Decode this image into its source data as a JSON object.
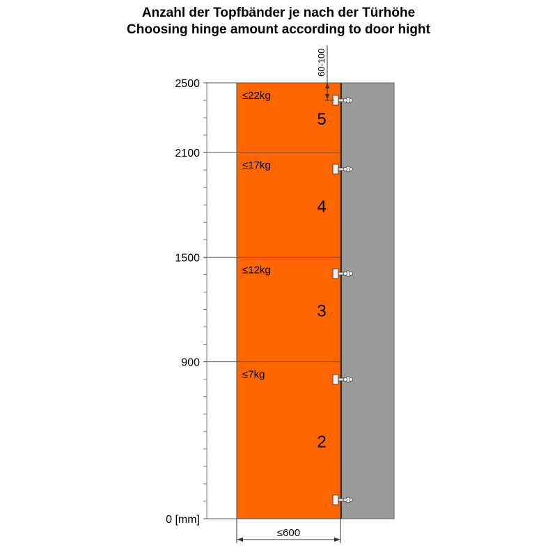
{
  "title_de": "Anzahl der Topfbänder je nach der Türhöhe",
  "title_en": "Choosing hinge amount according to door hight",
  "axis": {
    "max": 2500,
    "labels": [
      {
        "value": 2500,
        "text": "2500"
      },
      {
        "value": 2100,
        "text": "2100"
      },
      {
        "value": 1500,
        "text": "1500"
      },
      {
        "value": 900,
        "text": "900"
      },
      {
        "value": 0,
        "text": "0 [mm]"
      }
    ]
  },
  "zones": [
    {
      "from": 0,
      "to": 900,
      "weight": "≤7kg",
      "hinges": "2"
    },
    {
      "from": 900,
      "to": 1500,
      "weight": "≤12kg",
      "hinges": "3"
    },
    {
      "from": 1500,
      "to": 2100,
      "weight": "≤17kg",
      "hinges": "4"
    },
    {
      "from": 2100,
      "to": 2500,
      "weight": "≤22kg",
      "hinges": "5"
    }
  ],
  "dimensions": {
    "width": "≤600",
    "top_offset": "60-100"
  },
  "colors": {
    "door": "#ff6600",
    "cabinet": "#9a9a9a",
    "line": "#555555"
  }
}
